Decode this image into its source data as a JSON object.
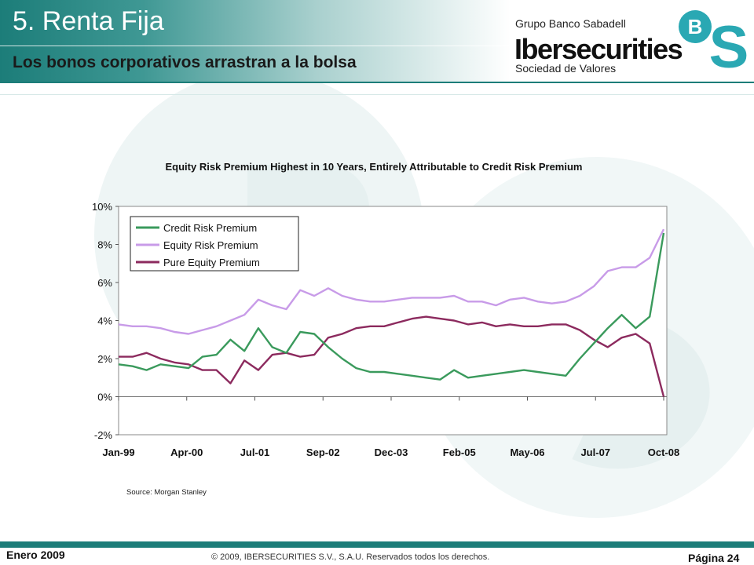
{
  "header": {
    "title": "5. Renta Fija",
    "subtitle": "Los bonos corporativos arrastran a la bolsa",
    "group": "Grupo Banco Sabadell",
    "brand": "Ibersecurities",
    "brand_sub": "Sociedad de Valores",
    "logo_letters": [
      "B",
      "S"
    ]
  },
  "colors": {
    "accent": "#1c7d79",
    "credit": "#3a9a5c",
    "equity": "#c89be8",
    "pure": "#8c2a5e"
  },
  "chart_data": {
    "type": "line",
    "title": "Equity Risk Premium Highest in 10 Years, Entirely Attributable to Credit Risk Premium",
    "xlabel": "",
    "ylabel": "",
    "ylim": [
      -2,
      10
    ],
    "y_ticks": [
      "10%",
      "8%",
      "6%",
      "4%",
      "2%",
      "0%",
      "-2%"
    ],
    "x_ticks": [
      "Jan-99",
      "Apr-00",
      "Jul-01",
      "Sep-02",
      "Dec-03",
      "Feb-05",
      "May-06",
      "Jul-07",
      "Oct-08"
    ],
    "x": [
      0,
      3,
      6,
      9,
      12,
      15,
      18,
      21,
      24,
      27,
      30,
      33,
      36,
      39,
      42,
      45,
      48,
      51,
      54,
      57,
      60,
      63,
      66,
      69,
      72,
      75,
      78,
      81,
      84,
      87,
      90,
      93,
      96,
      99,
      102,
      105,
      108,
      111,
      114,
      117
    ],
    "grid": false,
    "legend_position": "top-left",
    "source": "Source: Morgan Stanley",
    "series": [
      {
        "name": "Credit Risk Premium",
        "values": [
          1.7,
          1.6,
          1.4,
          1.7,
          1.6,
          1.5,
          2.1,
          2.2,
          3.0,
          2.4,
          3.6,
          2.6,
          2.3,
          3.4,
          3.3,
          2.6,
          2.0,
          1.5,
          1.3,
          1.3,
          1.2,
          1.1,
          1.0,
          0.9,
          1.4,
          1.0,
          1.1,
          1.2,
          1.3,
          1.4,
          1.3,
          1.2,
          1.1,
          2.0,
          2.8,
          3.6,
          4.3,
          3.6,
          4.2,
          8.6
        ]
      },
      {
        "name": "Equity Risk Premium",
        "values": [
          3.8,
          3.7,
          3.7,
          3.6,
          3.4,
          3.3,
          3.5,
          3.7,
          4.0,
          4.3,
          5.1,
          4.8,
          4.6,
          5.6,
          5.3,
          5.7,
          5.3,
          5.1,
          5.0,
          5.0,
          5.1,
          5.2,
          5.2,
          5.2,
          5.3,
          5.0,
          5.0,
          4.8,
          5.1,
          5.2,
          5.0,
          4.9,
          5.0,
          5.3,
          5.8,
          6.6,
          6.8,
          6.8,
          7.3,
          8.8
        ]
      },
      {
        "name": "Pure Equity Premium",
        "values": [
          2.1,
          2.1,
          2.3,
          2.0,
          1.8,
          1.7,
          1.4,
          1.4,
          0.7,
          1.9,
          1.4,
          2.2,
          2.3,
          2.1,
          2.2,
          3.1,
          3.3,
          3.6,
          3.7,
          3.7,
          3.9,
          4.1,
          4.2,
          4.1,
          4.0,
          3.8,
          3.9,
          3.7,
          3.8,
          3.7,
          3.7,
          3.8,
          3.8,
          3.5,
          3.0,
          2.6,
          3.1,
          3.3,
          2.8,
          0.0
        ]
      }
    ]
  },
  "footer": {
    "date": "Enero 2009",
    "copyright": "© 2009, IBERSECURITIES S.V., S.A.U. Reservados todos los derechos.",
    "page": "Página 24"
  }
}
